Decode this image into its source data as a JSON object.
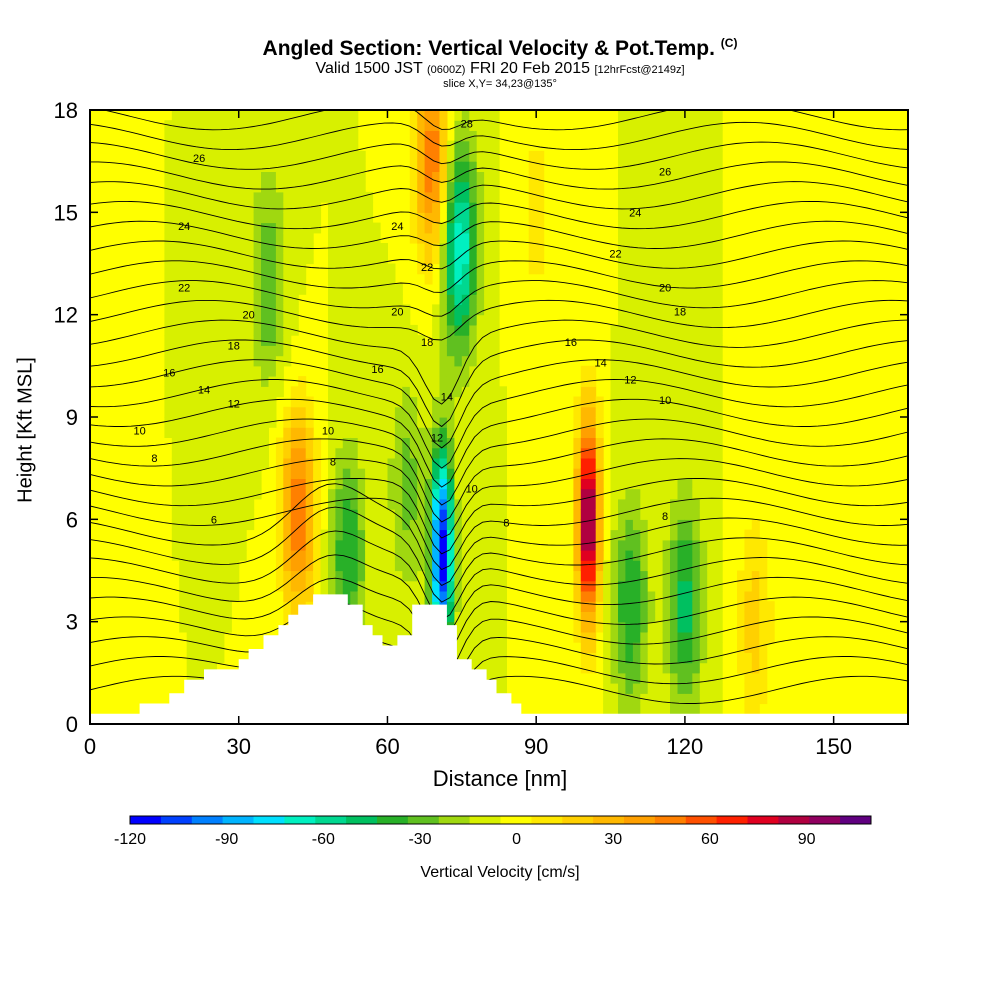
{
  "title": "Angled Section: Vertical Velocity & Pot.Temp.",
  "title_mark": "(C)",
  "subtitle_main": "Valid 1500 JST",
  "subtitle_z": "(0600Z)",
  "subtitle_date": "FRI 20 Feb 2015",
  "subtitle_fcst": "[12hrFcst@2149z]",
  "slice_label": "slice X,Y= 34,23@135°",
  "colorbar_title": "Vertical Velocity [cm/s]",
  "chart_data": {
    "type": "heatmap",
    "xlabel": "Distance [nm]",
    "ylabel": "Height [Kft MSL]",
    "xlim": [
      0,
      165
    ],
    "ylim": [
      0,
      18
    ],
    "xticks": [
      0,
      30,
      60,
      90,
      120,
      150
    ],
    "yticks": [
      0,
      3,
      6,
      9,
      12,
      15,
      18
    ],
    "grid": false,
    "colorbar": {
      "orientation": "horizontal",
      "range": [
        -120,
        110
      ],
      "step": 10,
      "tick_labels": [
        -120,
        -90,
        -60,
        -30,
        0,
        30,
        60,
        90
      ],
      "colors": [
        "#0000ff",
        "#0040ff",
        "#0080ff",
        "#00b4ff",
        "#00e0ff",
        "#00f0c0",
        "#00d890",
        "#00c060",
        "#28b028",
        "#60c020",
        "#a0d810",
        "#d8f000",
        "#ffff00",
        "#ffe800",
        "#ffd000",
        "#ffb800",
        "#ffa000",
        "#ff8000",
        "#ff5000",
        "#ff2000",
        "#e00020",
        "#b00040",
        "#900060",
        "#600080"
      ]
    },
    "shaded_field": "Vertical Velocity [cm/s]",
    "velocity_features": [
      {
        "x": 100.5,
        "z": 6.0,
        "w": 110
      },
      {
        "x": 42,
        "z": 6.2,
        "w": 60
      },
      {
        "x": 69,
        "z": 16.5,
        "w": 60
      },
      {
        "x": 71,
        "z": 5.0,
        "w": -120
      },
      {
        "x": 74.5,
        "z": 14.0,
        "w": -70
      },
      {
        "x": 52,
        "z": 5.0,
        "w": -40
      },
      {
        "x": 36,
        "z": 13.0,
        "w": -30
      },
      {
        "x": 109,
        "z": 3.5,
        "w": -40
      },
      {
        "x": 120,
        "z": 3.5,
        "w": -45
      },
      {
        "x": 64,
        "z": 7.0,
        "w": -25
      },
      {
        "x": 134,
        "z": 3.0,
        "w": 25
      },
      {
        "x": 90,
        "z": 15.0,
        "w": 15
      }
    ],
    "contour_field": "Pot.Temp. [C]",
    "contour_labels": [
      {
        "text": "26",
        "x": 22,
        "z": 16.6
      },
      {
        "text": "24",
        "x": 19,
        "z": 14.6
      },
      {
        "text": "22",
        "x": 19,
        "z": 12.8
      },
      {
        "text": "20",
        "x": 32,
        "z": 12.0
      },
      {
        "text": "18",
        "x": 29,
        "z": 11.1
      },
      {
        "text": "16",
        "x": 16,
        "z": 10.3
      },
      {
        "text": "14",
        "x": 23,
        "z": 9.8
      },
      {
        "text": "12",
        "x": 29,
        "z": 9.4
      },
      {
        "text": "10",
        "x": 10,
        "z": 8.6
      },
      {
        "text": "8",
        "x": 13,
        "z": 7.8
      },
      {
        "text": "6",
        "x": 25,
        "z": 6.0
      },
      {
        "text": "10",
        "x": 48,
        "z": 8.6
      },
      {
        "text": "8",
        "x": 49,
        "z": 7.7
      },
      {
        "text": "16",
        "x": 58,
        "z": 10.4
      },
      {
        "text": "20",
        "x": 62,
        "z": 12.1
      },
      {
        "text": "24",
        "x": 62,
        "z": 14.6
      },
      {
        "text": "22",
        "x": 68,
        "z": 13.4
      },
      {
        "text": "18",
        "x": 68,
        "z": 11.2
      },
      {
        "text": "14",
        "x": 72,
        "z": 9.6
      },
      {
        "text": "12",
        "x": 70,
        "z": 8.4
      },
      {
        "text": "10",
        "x": 77,
        "z": 6.9
      },
      {
        "text": "8",
        "x": 84,
        "z": 5.9
      },
      {
        "text": "28",
        "x": 76,
        "z": 17.6
      },
      {
        "text": "26",
        "x": 116,
        "z": 16.2
      },
      {
        "text": "24",
        "x": 110,
        "z": 15.0
      },
      {
        "text": "22",
        "x": 106,
        "z": 13.8
      },
      {
        "text": "20",
        "x": 116,
        "z": 12.8
      },
      {
        "text": "18",
        "x": 119,
        "z": 12.1
      },
      {
        "text": "16",
        "x": 97,
        "z": 11.2
      },
      {
        "text": "14",
        "x": 103,
        "z": 10.6
      },
      {
        "text": "12",
        "x": 109,
        "z": 10.1
      },
      {
        "text": "10",
        "x": 116,
        "z": 9.5
      },
      {
        "text": "8",
        "x": 116,
        "z": 6.1
      }
    ],
    "terrain": [
      [
        0,
        0.3
      ],
      [
        10,
        0.3
      ],
      [
        10,
        0.6
      ],
      [
        16,
        0.6
      ],
      [
        16,
        0.9
      ],
      [
        19,
        0.9
      ],
      [
        19,
        1.3
      ],
      [
        23,
        1.3
      ],
      [
        23,
        1.6
      ],
      [
        30,
        1.6
      ],
      [
        30,
        1.9
      ],
      [
        32,
        1.9
      ],
      [
        32,
        2.2
      ],
      [
        35,
        2.2
      ],
      [
        35,
        2.6
      ],
      [
        38,
        2.6
      ],
      [
        38,
        2.9
      ],
      [
        40,
        2.9
      ],
      [
        40,
        3.2
      ],
      [
        42,
        3.2
      ],
      [
        42,
        3.5
      ],
      [
        45,
        3.5
      ],
      [
        45,
        3.8
      ],
      [
        52,
        3.8
      ],
      [
        52,
        3.5
      ],
      [
        55,
        3.5
      ],
      [
        55,
        2.9
      ],
      [
        57,
        2.9
      ],
      [
        57,
        2.6
      ],
      [
        59,
        2.6
      ],
      [
        59,
        2.3
      ],
      [
        62,
        2.3
      ],
      [
        62,
        2.6
      ],
      [
        65,
        2.6
      ],
      [
        65,
        3.5
      ],
      [
        72,
        3.5
      ],
      [
        72,
        2.9
      ],
      [
        74,
        2.9
      ],
      [
        74,
        1.9
      ],
      [
        77,
        1.9
      ],
      [
        77,
        1.6
      ],
      [
        80,
        1.6
      ],
      [
        80,
        1.3
      ],
      [
        82,
        1.3
      ],
      [
        82,
        0.9
      ],
      [
        85,
        0.9
      ],
      [
        85,
        0.6
      ],
      [
        87,
        0.6
      ],
      [
        87,
        0.3
      ],
      [
        165,
        0.3
      ]
    ]
  }
}
